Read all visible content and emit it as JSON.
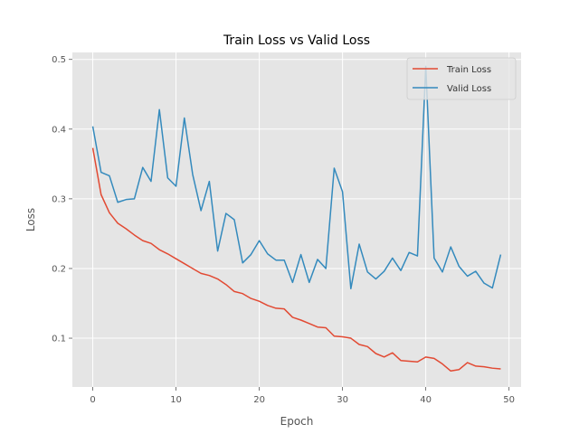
{
  "chart_data": {
    "type": "line",
    "title": "Train Loss vs Valid Loss",
    "xlabel": "Epoch",
    "ylabel": "Loss",
    "xlim": [
      -2.45,
      51.45
    ],
    "ylim": [
      0.03,
      0.51
    ],
    "xticks": [
      0,
      10,
      20,
      30,
      40,
      50
    ],
    "yticks": [
      0.1,
      0.2,
      0.3,
      0.4,
      0.5
    ],
    "grid": true,
    "legend_position": "top-right",
    "x": [
      0,
      1,
      2,
      3,
      4,
      5,
      6,
      7,
      8,
      9,
      10,
      11,
      12,
      13,
      14,
      15,
      16,
      17,
      18,
      19,
      20,
      21,
      22,
      23,
      24,
      25,
      26,
      27,
      28,
      29,
      30,
      31,
      32,
      33,
      34,
      35,
      36,
      37,
      38,
      39,
      40,
      41,
      42,
      43,
      44,
      45,
      46,
      47,
      48,
      49
    ],
    "series": [
      {
        "name": "Train Loss",
        "color": "#E24A33",
        "values": [
          0.373,
          0.306,
          0.28,
          0.265,
          0.257,
          0.248,
          0.24,
          0.236,
          0.227,
          0.221,
          0.214,
          0.207,
          0.2,
          0.193,
          0.19,
          0.185,
          0.177,
          0.167,
          0.164,
          0.157,
          0.153,
          0.147,
          0.143,
          0.142,
          0.13,
          0.126,
          0.121,
          0.116,
          0.115,
          0.103,
          0.102,
          0.1,
          0.091,
          0.088,
          0.078,
          0.073,
          0.079,
          0.068,
          0.067,
          0.066,
          0.073,
          0.071,
          0.063,
          0.053,
          0.055,
          0.065,
          0.06,
          0.059,
          0.057,
          0.056
        ]
      },
      {
        "name": "Valid Loss",
        "color": "#348ABD",
        "values": [
          0.404,
          0.338,
          0.333,
          0.295,
          0.299,
          0.3,
          0.345,
          0.325,
          0.428,
          0.33,
          0.318,
          0.416,
          0.335,
          0.283,
          0.325,
          0.225,
          0.279,
          0.27,
          0.208,
          0.22,
          0.24,
          0.221,
          0.212,
          0.212,
          0.18,
          0.22,
          0.18,
          0.213,
          0.2,
          0.344,
          0.31,
          0.171,
          0.235,
          0.195,
          0.185,
          0.196,
          0.215,
          0.197,
          0.223,
          0.218,
          0.49,
          0.215,
          0.195,
          0.231,
          0.203,
          0.189,
          0.196,
          0.179,
          0.172,
          0.22
        ]
      }
    ]
  }
}
